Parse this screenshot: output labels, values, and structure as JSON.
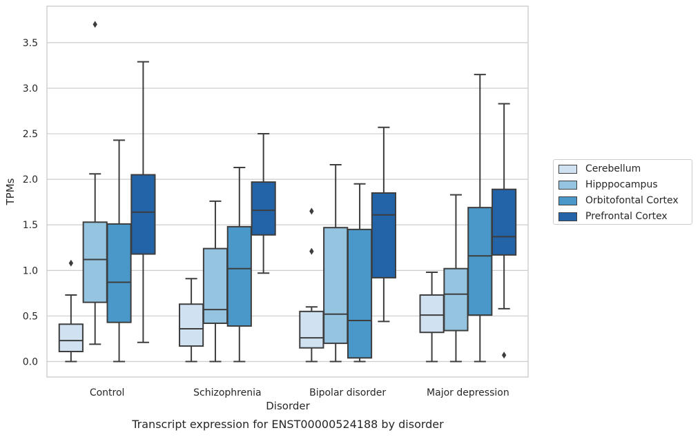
{
  "footer_title": "Transcript expression for ENST00000524188 by disorder",
  "chart_data": {
    "type": "box",
    "title": "",
    "xlabel": "Disorder",
    "ylabel": "TPMs",
    "ylim": [
      -0.17,
      3.9
    ],
    "yticks": [
      "0.0",
      "0.5",
      "1.0",
      "1.5",
      "2.0",
      "2.5",
      "3.0",
      "3.5"
    ],
    "categories": [
      "Control",
      "Schizophrenia",
      "Bipolar disorder",
      "Major depression"
    ],
    "grid": true,
    "legend_position": "right",
    "series": [
      {
        "name": "Cerebellum",
        "color": "#d0e1f2",
        "boxes": [
          {
            "whislo": 0.0,
            "q1": 0.11,
            "med": 0.23,
            "q3": 0.41,
            "whishi": 0.73,
            "fliers": [
              1.08
            ]
          },
          {
            "whislo": 0.0,
            "q1": 0.17,
            "med": 0.36,
            "q3": 0.63,
            "whishi": 0.91,
            "fliers": []
          },
          {
            "whislo": 0.0,
            "q1": 0.15,
            "med": 0.26,
            "q3": 0.55,
            "whishi": 0.6,
            "fliers": [
              1.21,
              1.65
            ]
          },
          {
            "whislo": 0.0,
            "q1": 0.32,
            "med": 0.51,
            "q3": 0.73,
            "whishi": 0.98,
            "fliers": []
          }
        ]
      },
      {
        "name": "Hipppocampus",
        "color": "#94c4df",
        "boxes": [
          {
            "whislo": 0.19,
            "q1": 0.65,
            "med": 1.12,
            "q3": 1.53,
            "whishi": 2.06,
            "fliers": [
              3.7
            ]
          },
          {
            "whislo": 0.0,
            "q1": 0.42,
            "med": 0.57,
            "q3": 1.24,
            "whishi": 1.76,
            "fliers": []
          },
          {
            "whislo": 0.0,
            "q1": 0.2,
            "med": 0.52,
            "q3": 1.47,
            "whishi": 2.16,
            "fliers": []
          },
          {
            "whislo": 0.0,
            "q1": 0.34,
            "med": 0.74,
            "q3": 1.02,
            "whishi": 1.83,
            "fliers": []
          }
        ]
      },
      {
        "name": "Orbitofontal Cortex",
        "color": "#4a98c9",
        "boxes": [
          {
            "whislo": 0.0,
            "q1": 0.43,
            "med": 0.87,
            "q3": 1.51,
            "whishi": 2.43,
            "fliers": []
          },
          {
            "whislo": 0.0,
            "q1": 0.39,
            "med": 1.02,
            "q3": 1.48,
            "whishi": 2.13,
            "fliers": []
          },
          {
            "whislo": 0.0,
            "q1": 0.04,
            "med": 0.45,
            "q3": 1.45,
            "whishi": 1.95,
            "fliers": []
          },
          {
            "whislo": 0.0,
            "q1": 0.51,
            "med": 1.16,
            "q3": 1.69,
            "whishi": 3.15,
            "fliers": []
          }
        ]
      },
      {
        "name": "Prefrontal Cortex",
        "color": "#2363a8",
        "boxes": [
          {
            "whislo": 0.21,
            "q1": 1.18,
            "med": 1.64,
            "q3": 2.05,
            "whishi": 3.29,
            "fliers": []
          },
          {
            "whislo": 0.97,
            "q1": 1.39,
            "med": 1.66,
            "q3": 1.97,
            "whishi": 2.5,
            "fliers": []
          },
          {
            "whislo": 0.44,
            "q1": 0.92,
            "med": 1.61,
            "q3": 1.85,
            "whishi": 2.57,
            "fliers": []
          },
          {
            "whislo": 0.58,
            "q1": 1.17,
            "med": 1.37,
            "q3": 1.89,
            "whishi": 2.83,
            "fliers": [
              0.07
            ]
          }
        ]
      }
    ]
  }
}
